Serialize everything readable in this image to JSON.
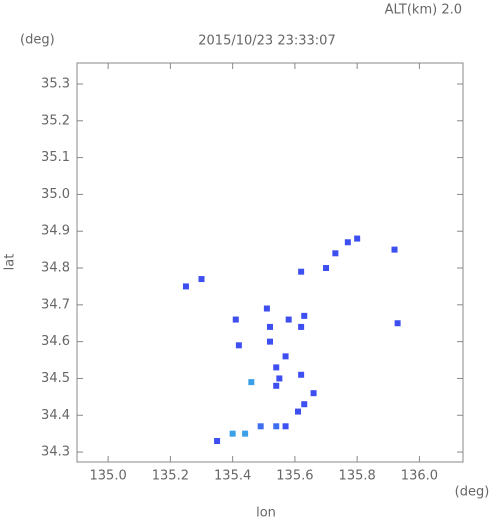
{
  "chart_data": {
    "type": "scatter",
    "title": "2015/10/23 23:33:07",
    "subtitle": "ALT(km)  2.0",
    "y_unit": "(deg)",
    "x_unit": "(deg)",
    "x_label": "lon",
    "y_label": "lat",
    "x": [
      135.8,
      135.77,
      135.92,
      135.73,
      135.7,
      135.62,
      135.3,
      135.25,
      135.93,
      135.51,
      135.41,
      135.52,
      135.58,
      135.63,
      135.62,
      135.42,
      135.52,
      135.57,
      135.54,
      135.55,
      135.54,
      135.46,
      135.62,
      135.66,
      135.63,
      135.61,
      135.57,
      135.54,
      135.49,
      135.44,
      135.4,
      135.35
    ],
    "values": [
      34.88,
      34.87,
      34.85,
      34.84,
      34.8,
      34.79,
      34.77,
      34.75,
      34.65,
      34.69,
      34.66,
      34.64,
      34.66,
      34.67,
      34.64,
      34.59,
      34.6,
      34.56,
      34.53,
      34.5,
      34.48,
      34.49,
      34.51,
      34.46,
      34.43,
      34.41,
      34.37,
      34.37,
      34.37,
      34.35,
      34.35,
      34.33
    ],
    "point_colors": [
      "#3d4ff0",
      "#3d4ff0",
      "#3d4ff0",
      "#3d4ff0",
      "#3d4ff0",
      "#3d4ff0",
      "#3d4ff0",
      "#3d4ff0",
      "#3d4ff0",
      "#3d4ff0",
      "#3d4ff0",
      "#3d4ff0",
      "#3d4ff0",
      "#3d4ff0",
      "#3d4ff0",
      "#3d4ff0",
      "#3d4ff0",
      "#3d4ff0",
      "#3d4ff0",
      "#3d4ff0",
      "#3d4ff0",
      "#3aa0e8",
      "#3d4ff0",
      "#3d4ff0",
      "#3d4ff0",
      "#3d4ff0",
      "#3d4ff0",
      "#3d6ef0",
      "#3d6ef0",
      "#3aa0e8",
      "#3aa0e8",
      "#3d4ff0"
    ],
    "xlim": [
      134.9,
      136.14
    ],
    "ylim": [
      34.273,
      35.357
    ],
    "xticks": [
      {
        "value": 135,
        "label": "135.0"
      },
      135.2,
      135.4,
      135.6,
      135.8,
      {
        "value": 136,
        "label": "136.0"
      }
    ],
    "yticks": [
      34.3,
      34.4,
      34.5,
      34.6,
      34.7,
      34.8,
      34.9,
      {
        "value": 35,
        "label": "35.0"
      },
      35.1,
      35.2,
      35.3
    ]
  }
}
